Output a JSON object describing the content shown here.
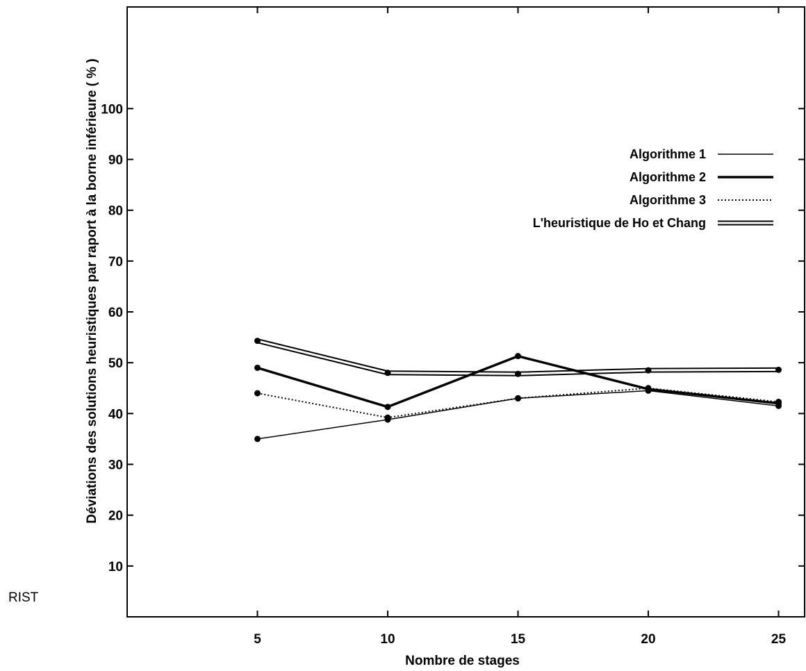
{
  "side_text": "RIST",
  "chart_data": {
    "type": "line",
    "title": "",
    "xlabel": "Nombre de stages",
    "ylabel": "Déviations des solutions heuristiques par raport à la borne inférieure ( % )",
    "x": [
      5,
      10,
      15,
      20,
      25
    ],
    "xlim": [
      0,
      26
    ],
    "ylim": [
      0,
      120
    ],
    "xticks": [
      5,
      10,
      15,
      20,
      25
    ],
    "yticks": [
      10,
      20,
      30,
      40,
      50,
      60,
      70,
      80,
      90,
      100
    ],
    "grid": false,
    "legend_position": "top-right",
    "series": [
      {
        "name": "Algorithme 1",
        "style": "thin",
        "values": [
          35,
          38.8,
          43,
          44.5,
          41.5
        ]
      },
      {
        "name": "Algorithme 2",
        "style": "bold",
        "values": [
          49,
          41.3,
          51.3,
          44.8,
          42
        ]
      },
      {
        "name": "Algorithme 3",
        "style": "dotted",
        "values": [
          44,
          39.2,
          43,
          45,
          42.3
        ]
      },
      {
        "name": "L'heuristique de Ho et Chang",
        "style": "double",
        "values": [
          54.3,
          48,
          47.8,
          48.5,
          48.6
        ]
      }
    ]
  }
}
